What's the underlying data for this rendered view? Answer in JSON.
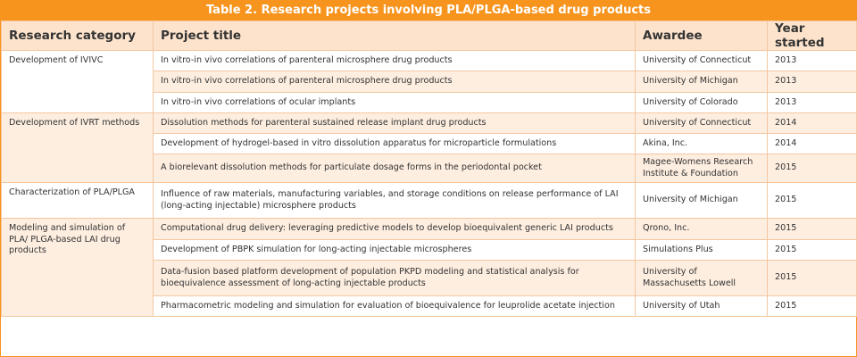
{
  "header": {
    "title": "Table 2. Research projects involving PLA/PLGA-based drug products"
  },
  "table": {
    "columns": [
      "Research category",
      "Project title",
      "Awardee",
      "Year started"
    ],
    "groups": [
      {
        "category": "Development of IVIVC",
        "rows": [
          [
            "In vitro-in vivo correlations of parenteral microsphere drug products",
            "University of Connecticut",
            2013
          ],
          [
            "In vitro-in vivo correlations of parenteral microsphere drug products",
            "University of Michigan",
            2013
          ],
          [
            "In vitro-in vivo correlations of ocular implants",
            "University of Colorado",
            2013
          ]
        ]
      },
      {
        "category": "Development of IVRT methods",
        "rows": [
          [
            "Dissolution methods for parenteral sustained release implant drug products",
            "University of Connecticut",
            2014
          ],
          [
            "Development of hydrogel-based in vitro dissolution apparatus for microparticle formulations",
            "Akina, Inc.",
            2014
          ],
          [
            "A biorelevant dissolution methods for particulate dosage forms in the periodontal pocket",
            "Magee-Womens Research Institute & Foundation",
            2015
          ]
        ]
      },
      {
        "category": "Characterization of PLA/PLGA",
        "rows": [
          [
            "Influence of raw materials, manufacturing variables, and storage conditions on release performance of LAI (long-acting injectable) microsphere products",
            "University of Michigan",
            2015
          ]
        ]
      },
      {
        "category": "Modeling and simulation of PLA/ PLGA-based LAI drug products",
        "rows": [
          [
            "Computational drug delivery: leveraging predictive models to develop bioequivalent generic LAI products",
            "Qrono, Inc.",
            2015
          ],
          [
            "Development of PBPK simulation for long-acting injectable microspheres",
            "Simulations Plus",
            2015
          ],
          [
            "Data-fusion based platform development of population PKPD modeling and statistical analysis for bioequivalence assessment of long-acting injectable products",
            "University of Massachusetts Lowell",
            2015
          ],
          [
            "Pharmacometric modeling and simulation for evaluation of bioequivalence for leuprolide acetate injection",
            "University of Utah",
            2015
          ]
        ]
      }
    ]
  }
}
